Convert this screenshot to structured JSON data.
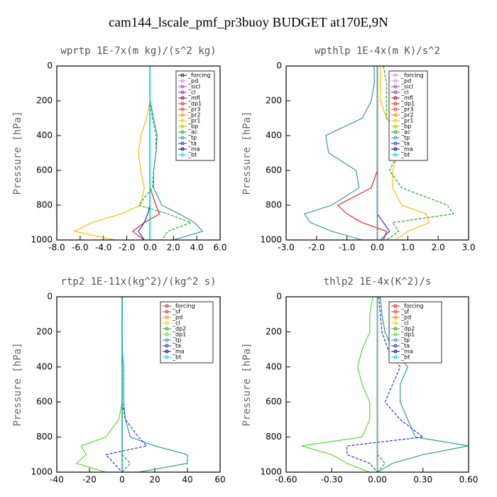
{
  "title": "cam144_lscale_pmf_pr3buoy  BUDGET at170E,9N",
  "chart_data": [
    {
      "type": "line",
      "title": "wprtp  1E-7x(m kg)/(s^2 kg)",
      "ylabel": "Pressure [hPa]",
      "y": [
        0,
        100,
        200,
        300,
        400,
        500,
        600,
        700,
        800,
        850,
        900,
        950,
        1000
      ],
      "ylim": [
        1000,
        0
      ],
      "yticks": [
        0,
        200,
        400,
        600,
        800,
        1000
      ],
      "xlim": [
        -8,
        6
      ],
      "xticks": [
        {
          "value": -8,
          "label": "-8.0"
        },
        {
          "value": -6,
          "label": "-6.0"
        },
        {
          "value": -4,
          "label": "-4.0"
        },
        {
          "value": -2,
          "label": "-2.0"
        },
        {
          "value": 0,
          "label": "0.0"
        },
        {
          "value": 2,
          "label": "2.0"
        },
        {
          "value": 4,
          "label": "4.0"
        },
        {
          "value": 6,
          "label": "6.0"
        }
      ],
      "series": [
        {
          "name": "_forcing",
          "color": "#222222",
          "values": [
            0,
            0,
            0,
            0,
            0,
            0,
            0,
            0,
            0,
            0,
            0,
            0,
            0
          ]
        },
        {
          "name": "_pd",
          "color": "#cc99cc",
          "values": [
            0,
            0,
            0,
            0,
            0,
            0,
            0,
            0,
            0,
            0,
            0,
            0,
            0
          ]
        },
        {
          "name": "_sicl",
          "color": "#8855cc",
          "values": [
            0,
            0,
            0,
            0,
            0,
            0,
            0,
            0,
            0,
            0,
            0,
            0,
            0
          ]
        },
        {
          "name": "_cl",
          "color": "#883388",
          "values": [
            0,
            0,
            0,
            0,
            0,
            0,
            0,
            0,
            0,
            0,
            0,
            0,
            0
          ]
        },
        {
          "name": "_mfl",
          "color": "#990033",
          "values": [
            0,
            0,
            0,
            0,
            0,
            0,
            0,
            0,
            0,
            0,
            0,
            0,
            0
          ]
        },
        {
          "name": "_dp1",
          "color": "#ee2222",
          "values": [
            0,
            0,
            0,
            0,
            0,
            0,
            0,
            0,
            0.5,
            0.8,
            -0.5,
            -1.5,
            -0.5
          ]
        },
        {
          "name": "_pr3",
          "color": "#ff3333",
          "values": [
            0,
            0,
            0,
            0,
            0,
            0,
            0,
            0,
            0,
            0,
            0,
            0,
            0
          ]
        },
        {
          "name": "_pr2",
          "color": "#ff8800",
          "values": [
            0,
            0,
            0,
            0,
            0,
            0,
            0,
            0,
            0,
            0,
            0,
            0,
            0
          ]
        },
        {
          "name": "_pr1",
          "color": "#ffbb00",
          "values": [
            0,
            0,
            0,
            -0.3,
            -0.8,
            -1.0,
            -0.8,
            -0.5,
            -0.8,
            -2.5,
            -5,
            -6.5,
            -3
          ]
        },
        {
          "name": "_bp",
          "color": "#aacc00",
          "values": [
            0,
            0,
            0,
            0,
            0,
            0,
            0,
            0,
            0,
            0,
            0,
            0,
            0
          ]
        },
        {
          "name": "_ac",
          "color": "#22aa22",
          "values": [
            0,
            0,
            0,
            0.2,
            0.5,
            0.5,
            0.3,
            0.2,
            -1,
            1.5,
            3.5,
            1.5,
            1
          ]
        },
        {
          "name": "_tp",
          "color": "#3399aa",
          "values": [
            0,
            0,
            0,
            0.3,
            0.6,
            0.5,
            0.3,
            0.3,
            1.0,
            2.5,
            3.8,
            4.5,
            2
          ]
        },
        {
          "name": "_ta",
          "color": "#2233dd",
          "values": [
            0,
            0,
            0,
            0,
            0,
            0,
            0,
            0,
            0,
            -0.2,
            -0.5,
            -1,
            -0.5
          ]
        },
        {
          "name": "_ma",
          "color": "#000088",
          "values": [
            0,
            0,
            0,
            0,
            0,
            0,
            0,
            0,
            0,
            0,
            0,
            0,
            0
          ]
        },
        {
          "name": "_bt",
          "color": "#00dddd",
          "values": [
            0,
            0,
            0,
            0,
            0,
            0,
            0,
            0,
            0,
            0,
            0,
            0,
            0
          ]
        }
      ]
    },
    {
      "type": "line",
      "title": "wpthlp  1E-4x(m K)/s^2",
      "ylabel": "Pressure [hPa]",
      "y": [
        0,
        100,
        200,
        300,
        400,
        500,
        600,
        700,
        800,
        850,
        900,
        950,
        1000
      ],
      "ylim": [
        1000,
        0
      ],
      "yticks": [
        0,
        200,
        400,
        600,
        800,
        1000
      ],
      "xlim": [
        -3,
        3
      ],
      "xticks": [
        {
          "value": -3,
          "label": "-3.0"
        },
        {
          "value": -2,
          "label": "-2.0"
        },
        {
          "value": -1,
          "label": "-1.0"
        },
        {
          "value": 0,
          "label": "0.0"
        },
        {
          "value": 1,
          "label": "1.0"
        },
        {
          "value": 2,
          "label": "2.0"
        },
        {
          "value": 3,
          "label": "3.0"
        }
      ],
      "series": [
        {
          "name": "_forcing",
          "color": "#cc99cc",
          "values": [
            0,
            0,
            0,
            0,
            0,
            0,
            0,
            0,
            0,
            0,
            0,
            0,
            0
          ]
        },
        {
          "name": "_pd",
          "color": "#cc99cc",
          "values": [
            0,
            0,
            0,
            0,
            0,
            0,
            0,
            0,
            0,
            0,
            0,
            0,
            0
          ]
        },
        {
          "name": "_sicl",
          "color": "#8855cc",
          "values": [
            0,
            0,
            0,
            0,
            0,
            0,
            0,
            0,
            0,
            0,
            0,
            0,
            0
          ]
        },
        {
          "name": "_cl",
          "color": "#883388",
          "values": [
            0,
            0,
            0,
            0,
            0,
            0,
            0,
            0,
            0,
            0,
            0,
            0,
            0
          ]
        },
        {
          "name": "_mfl",
          "color": "#990033",
          "values": [
            0,
            0,
            0,
            0,
            0,
            0,
            0,
            0,
            0,
            0,
            0,
            0,
            0
          ]
        },
        {
          "name": "_dp1",
          "color": "#ee2222",
          "values": [
            0,
            0,
            0,
            0,
            0,
            0,
            0,
            -0.2,
            -1.3,
            -1.0,
            -0.5,
            0.3,
            0.2
          ]
        },
        {
          "name": "_pr3",
          "color": "#ff3333",
          "values": [
            0,
            0,
            0,
            0,
            0,
            0,
            0,
            0,
            0,
            0,
            0,
            0,
            0
          ]
        },
        {
          "name": "_pr2",
          "color": "#ff8800",
          "values": [
            0,
            0,
            0,
            0,
            0,
            0,
            0,
            0,
            0,
            0,
            0,
            0,
            0
          ]
        },
        {
          "name": "_pr1",
          "color": "#ffbb00",
          "values": [
            0.1,
            0.1,
            0.1,
            0.3,
            0.8,
            0.7,
            0.5,
            0.5,
            0.8,
            1.6,
            1.7,
            1.0,
            0.6
          ]
        },
        {
          "name": "_bp",
          "color": "#aacc00",
          "values": [
            0,
            0,
            0,
            0,
            0,
            0,
            0,
            0,
            0,
            0,
            0,
            0,
            0
          ]
        },
        {
          "name": "_ac",
          "color": "#22aa22",
          "values": [
            0.2,
            0.3,
            0.3,
            0.3,
            0.8,
            0.7,
            0.4,
            0.8,
            2.3,
            2.5,
            0.5,
            0.7,
            0.3
          ]
        },
        {
          "name": "_tp",
          "color": "#3399aa",
          "values": [
            -0.1,
            -0.1,
            -0.2,
            -0.5,
            -1.7,
            -1.6,
            -0.7,
            -0.6,
            -1.5,
            -2.4,
            -2.2,
            -1.5,
            -0.5
          ]
        },
        {
          "name": "_ta",
          "color": "#2233dd",
          "values": [
            0,
            0,
            0,
            0,
            0,
            0,
            0,
            0,
            0,
            0,
            0.2,
            0.4,
            0.1
          ]
        },
        {
          "name": "_ma",
          "color": "#000088",
          "values": [
            0,
            0,
            0,
            0,
            0,
            0,
            0,
            0,
            0,
            0,
            0,
            0,
            0
          ]
        },
        {
          "name": "_bt",
          "color": "#00dddd",
          "values": [
            0,
            0,
            0,
            0,
            0,
            0,
            0,
            0,
            0,
            0,
            0,
            0,
            0
          ]
        }
      ]
    },
    {
      "type": "line",
      "title": "rtp2  1E-11x(kg^2)/(kg^2 s)",
      "ylabel": "Pressure [hPa]",
      "y": [
        0,
        100,
        200,
        300,
        400,
        500,
        600,
        700,
        800,
        850,
        900,
        950,
        1000
      ],
      "ylim": [
        1000,
        0
      ],
      "yticks": [
        0,
        200,
        400,
        600,
        800,
        1000
      ],
      "xlim": [
        -40,
        60
      ],
      "xticks": [
        -40,
        -20,
        0,
        20,
        40,
        60
      ],
      "series": [
        {
          "name": "_forcing",
          "color": "#ee2222",
          "values": [
            0,
            0,
            0,
            0,
            0,
            0,
            0,
            0,
            0,
            0,
            0,
            0,
            0
          ]
        },
        {
          "name": "_sf",
          "color": "#dd3333",
          "values": [
            0,
            0,
            0,
            0,
            0,
            0,
            0,
            0,
            0,
            0,
            0,
            0,
            0
          ]
        },
        {
          "name": "_pd",
          "color": "#ff8800",
          "values": [
            0,
            0,
            0,
            0,
            0,
            0,
            0,
            0,
            0,
            0,
            0,
            0,
            0
          ]
        },
        {
          "name": "_cl",
          "color": "#ffcc00",
          "values": [
            0,
            0,
            0,
            0,
            0,
            0,
            0,
            0,
            0,
            0,
            0,
            0,
            0
          ]
        },
        {
          "name": "_dp2",
          "color": "#22aa22",
          "values": [
            0,
            0,
            0,
            0,
            0,
            0,
            0,
            0,
            0,
            0,
            0,
            5,
            0
          ]
        },
        {
          "name": "_dp1",
          "color": "#55dd33",
          "values": [
            0,
            0,
            0,
            0,
            0,
            0,
            0,
            -2,
            -10,
            -25,
            -22,
            -28,
            -10
          ]
        },
        {
          "name": "_tp",
          "color": "#3399aa",
          "values": [
            0,
            0,
            0,
            0,
            1,
            1,
            1,
            2,
            5,
            20,
            40,
            40,
            10
          ]
        },
        {
          "name": "_ta",
          "color": "#2233dd",
          "values": [
            0,
            0,
            0,
            0,
            0,
            0,
            0,
            2,
            10,
            15,
            -10,
            -5,
            0
          ]
        },
        {
          "name": "_ma",
          "color": "#000088",
          "values": [
            0,
            0,
            0,
            0,
            0,
            0,
            0,
            0,
            0,
            0,
            0,
            0,
            0
          ]
        },
        {
          "name": "_bt",
          "color": "#00dddd",
          "values": [
            0,
            0,
            0,
            0,
            0,
            0,
            0,
            0,
            0,
            0,
            0,
            0,
            0
          ]
        }
      ]
    },
    {
      "type": "line",
      "title": "thlp2  1E-4x(K^2)/s",
      "ylabel": "Pressure [hPa]",
      "y": [
        0,
        100,
        200,
        300,
        400,
        500,
        600,
        700,
        800,
        850,
        900,
        950,
        1000
      ],
      "ylim": [
        1000,
        0
      ],
      "yticks": [
        0,
        200,
        400,
        600,
        800,
        1000
      ],
      "xlim": [
        -0.6,
        0.6
      ],
      "xticks": [
        {
          "value": -0.6,
          "label": "-0.60"
        },
        {
          "value": -0.3,
          "label": "-0.30"
        },
        {
          "value": 0,
          "label": "0.00"
        },
        {
          "value": 0.3,
          "label": "0.30"
        },
        {
          "value": 0.6,
          "label": "0.60"
        }
      ],
      "series": [
        {
          "name": "_forcing",
          "color": "#ee2222",
          "values": [
            0,
            0,
            0,
            0,
            0,
            0,
            0,
            0,
            0,
            0,
            0,
            0,
            0
          ]
        },
        {
          "name": "_sf",
          "color": "#dd3333",
          "values": [
            0,
            0,
            0,
            0,
            0,
            0,
            0,
            0,
            0,
            0,
            0,
            0,
            0
          ]
        },
        {
          "name": "_pd",
          "color": "#ff8800",
          "values": [
            0,
            0,
            0,
            0,
            0,
            0,
            0,
            0,
            0,
            0,
            0,
            0,
            0
          ]
        },
        {
          "name": "_cl",
          "color": "#ffcc00",
          "values": [
            0,
            0,
            0,
            0,
            0,
            0,
            0,
            0,
            0,
            0,
            0,
            0,
            0
          ]
        },
        {
          "name": "_dp2",
          "color": "#22aa22",
          "values": [
            0,
            0,
            0,
            0,
            0,
            0,
            0,
            0,
            0,
            0,
            0,
            0.05,
            0
          ]
        },
        {
          "name": "_dp1",
          "color": "#55dd33",
          "values": [
            -0.03,
            -0.05,
            -0.05,
            -0.1,
            -0.13,
            -0.1,
            -0.05,
            -0.05,
            -0.1,
            -0.5,
            -0.3,
            -0.2,
            -0.05
          ]
        },
        {
          "name": "_tp",
          "color": "#3399aa",
          "values": [
            0.02,
            0.03,
            0.05,
            0.1,
            0.2,
            0.15,
            0.15,
            0.2,
            0.25,
            0.6,
            0.3,
            0.1,
            0
          ]
        },
        {
          "name": "_ta",
          "color": "#2233dd",
          "values": [
            0.01,
            0.02,
            0.03,
            0.07,
            0.15,
            0.1,
            0.05,
            0.15,
            0.3,
            -0.2,
            -0.2,
            -0.05,
            0
          ]
        },
        {
          "name": "_ma",
          "color": "#000088",
          "values": [
            0,
            0,
            0,
            0,
            0,
            0,
            0,
            0,
            0,
            0,
            0,
            0,
            0
          ]
        },
        {
          "name": "_bt",
          "color": "#00dddd",
          "values": [
            0,
            0,
            0,
            0,
            0,
            0,
            0,
            0,
            0,
            0,
            0,
            0,
            0
          ]
        }
      ]
    }
  ]
}
